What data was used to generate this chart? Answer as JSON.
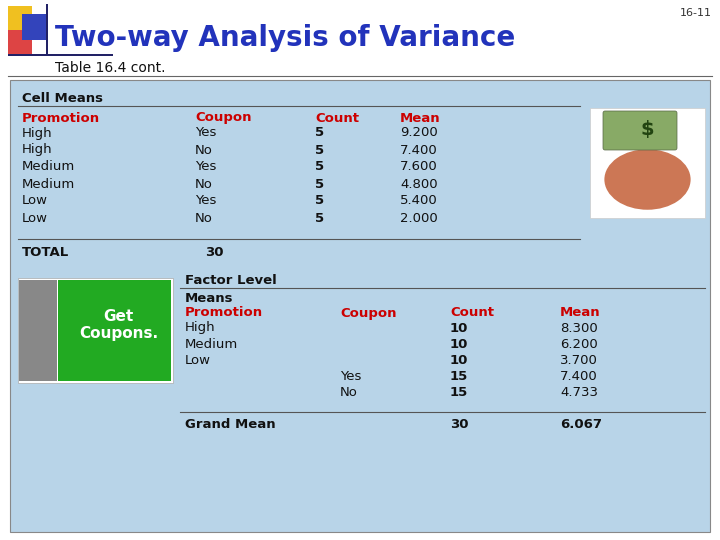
{
  "title": "Two-way Analysis of Variance",
  "subtitle": "Table 16.4 cont.",
  "page_num": "16-11",
  "white_bg": "#ffffff",
  "light_blue_bg": "#b8d4e8",
  "title_color": "#2233bb",
  "red_color": "#cc0000",
  "black_color": "#111111",
  "cell_means_label": "Cell Means",
  "cell_means_header": [
    "Promotion",
    "Coupon",
    "Count",
    "Mean"
  ],
  "cell_means_rows": [
    [
      "High",
      "Yes",
      "5",
      "9.200"
    ],
    [
      "High",
      "No",
      "5",
      "7.400"
    ],
    [
      "Medium",
      "Yes",
      "5",
      "7.600"
    ],
    [
      "Medium",
      "No",
      "5",
      "4.800"
    ],
    [
      "Low",
      "Yes",
      "5",
      "5.400"
    ],
    [
      "Low",
      "No",
      "5",
      "2.000"
    ]
  ],
  "total_label": "TOTAL",
  "total_value": "30",
  "factor_label": "Factor Level",
  "means_label": "Means",
  "factor_header": [
    "Promotion",
    "Coupon",
    "Count",
    "Mean"
  ],
  "factor_rows": [
    [
      "High",
      "",
      "10",
      "8.300"
    ],
    [
      "Medium",
      "",
      "10",
      "6.200"
    ],
    [
      "Low",
      "",
      "10",
      "3.700"
    ],
    [
      "",
      "Yes",
      "15",
      "7.400"
    ],
    [
      "",
      "No",
      "15",
      "4.733"
    ]
  ],
  "grand_mean_label": "Grand Mean",
  "grand_mean_count": "30",
  "grand_mean_value": "6.067",
  "logo_yellow": "#f0c020",
  "logo_red": "#dd4444",
  "logo_blue": "#3344bb",
  "logo_darkblue": "#222266"
}
